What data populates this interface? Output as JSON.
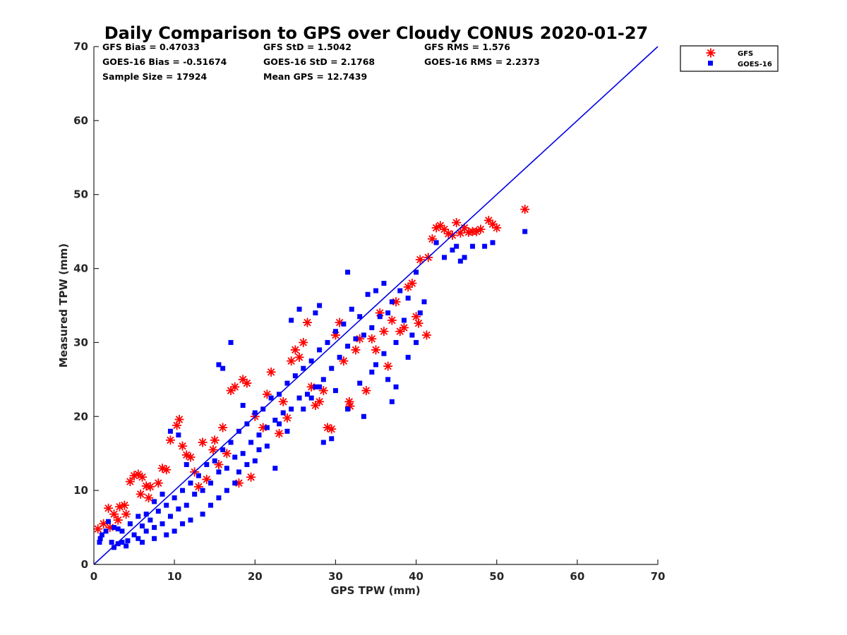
{
  "chart_data": {
    "type": "scatter",
    "title": "Daily Comparison to GPS over Cloudy CONUS 2020-01-27",
    "xlabel": "GPS TPW (mm)",
    "ylabel": "Measured TPW (mm)",
    "xlim": [
      0,
      70
    ],
    "ylim": [
      0,
      70
    ],
    "xticks": [
      "0",
      "10",
      "20",
      "30",
      "40",
      "50",
      "60",
      "70"
    ],
    "yticks": [
      "0",
      "10",
      "20",
      "30",
      "40",
      "50",
      "60",
      "70"
    ],
    "grid": false,
    "legend_position": "outside-top-right",
    "stats": [
      [
        "GFS Bias = 0.47033",
        "GFS StD = 1.5042",
        "GFS RMS = 1.576"
      ],
      [
        "GOES-16 Bias = -0.51674",
        "GOES-16 StD = 2.1768",
        "GOES-16 RMS = 2.2373"
      ],
      [
        "Sample Size = 17924",
        "Mean GPS = 12.7439",
        ""
      ]
    ],
    "reference_line": {
      "x": [
        0,
        70
      ],
      "y": [
        0,
        70
      ],
      "color": "#0000e6"
    },
    "series": [
      {
        "name": "GFS",
        "marker": "asterisk",
        "color": "#ff0000",
        "points": [
          [
            0.5,
            4.8
          ],
          [
            1.2,
            5.5
          ],
          [
            1.8,
            7.6
          ],
          [
            2.5,
            6.8
          ],
          [
            3.2,
            7.8
          ],
          [
            3.8,
            8.0
          ],
          [
            4.5,
            11.2
          ],
          [
            5.0,
            12.0
          ],
          [
            5.5,
            12.2
          ],
          [
            6.0,
            11.8
          ],
          [
            6.5,
            10.6
          ],
          [
            3.0,
            6.0
          ],
          [
            4.0,
            6.8
          ],
          [
            5.8,
            9.5
          ],
          [
            7.0,
            10.5
          ],
          [
            8.0,
            11.0
          ],
          [
            9.5,
            16.8
          ],
          [
            10.3,
            18.8
          ],
          [
            10.6,
            19.6
          ],
          [
            9.0,
            12.8
          ],
          [
            11.0,
            16.0
          ],
          [
            12.0,
            14.5
          ],
          [
            13.5,
            16.5
          ],
          [
            14.8,
            15.5
          ],
          [
            16.0,
            18.5
          ],
          [
            17.0,
            23.5
          ],
          [
            17.5,
            24.0
          ],
          [
            18.5,
            25.0
          ],
          [
            19.0,
            24.5
          ],
          [
            19.5,
            11.8
          ],
          [
            18.0,
            11.0
          ],
          [
            20.0,
            20.0
          ],
          [
            21.0,
            18.5
          ],
          [
            22.0,
            26.0
          ],
          [
            23.0,
            17.7
          ],
          [
            24.0,
            19.8
          ],
          [
            25.0,
            29.0
          ],
          [
            26.0,
            30.0
          ],
          [
            26.5,
            32.7
          ],
          [
            27.0,
            24.0
          ],
          [
            27.5,
            21.5
          ],
          [
            28.0,
            22.0
          ],
          [
            28.5,
            23.5
          ],
          [
            29.0,
            18.5
          ],
          [
            29.5,
            18.3
          ],
          [
            30.0,
            31.0
          ],
          [
            30.5,
            32.7
          ],
          [
            31.0,
            27.5
          ],
          [
            31.7,
            22.0
          ],
          [
            31.8,
            21.4
          ],
          [
            32.5,
            29.0
          ],
          [
            33.0,
            30.5
          ],
          [
            33.8,
            23.5
          ],
          [
            34.5,
            30.5
          ],
          [
            35.0,
            29.0
          ],
          [
            35.5,
            34.0
          ],
          [
            36.0,
            31.5
          ],
          [
            36.5,
            26.8
          ],
          [
            37.0,
            33.0
          ],
          [
            37.5,
            35.5
          ],
          [
            38.0,
            31.5
          ],
          [
            38.5,
            32.0
          ],
          [
            39.0,
            37.5
          ],
          [
            39.5,
            38.0
          ],
          [
            40.0,
            33.5
          ],
          [
            40.3,
            32.6
          ],
          [
            40.5,
            41.2
          ],
          [
            41.3,
            31.0
          ],
          [
            41.5,
            41.5
          ],
          [
            42.0,
            44.0
          ],
          [
            42.5,
            45.5
          ],
          [
            43.0,
            45.8
          ],
          [
            43.5,
            45.3
          ],
          [
            44.0,
            44.7
          ],
          [
            44.5,
            44.5
          ],
          [
            45.0,
            46.2
          ],
          [
            45.5,
            44.8
          ],
          [
            46.0,
            45.5
          ],
          [
            46.5,
            44.9
          ],
          [
            47.0,
            45.0
          ],
          [
            47.5,
            45.0
          ],
          [
            48.0,
            45.3
          ],
          [
            49.0,
            46.5
          ],
          [
            49.5,
            46.0
          ],
          [
            50.0,
            45.5
          ],
          [
            53.5,
            48.0
          ],
          [
            12.5,
            12.5
          ],
          [
            13.0,
            10.5
          ],
          [
            14.0,
            11.5
          ],
          [
            15.5,
            13.5
          ],
          [
            21.5,
            23.0
          ],
          [
            23.5,
            22.0
          ],
          [
            24.5,
            27.5
          ],
          [
            25.5,
            28.0
          ],
          [
            2.0,
            5.0
          ],
          [
            6.8,
            9.0
          ],
          [
            8.5,
            13.0
          ],
          [
            11.5,
            14.8
          ],
          [
            15.0,
            16.8
          ],
          [
            16.5,
            15.0
          ]
        ]
      },
      {
        "name": "GOES-16",
        "marker": "square",
        "color": "#0000ff",
        "points": [
          [
            0.8,
            3.5
          ],
          [
            1.5,
            4.5
          ],
          [
            2.2,
            3.0
          ],
          [
            3.0,
            2.8
          ],
          [
            3.5,
            4.5
          ],
          [
            4.2,
            3.2
          ],
          [
            5.0,
            4.0
          ],
          [
            5.5,
            3.5
          ],
          [
            6.0,
            5.2
          ],
          [
            6.5,
            4.5
          ],
          [
            7.0,
            6.0
          ],
          [
            7.5,
            5.0
          ],
          [
            8.0,
            7.2
          ],
          [
            8.5,
            5.5
          ],
          [
            9.0,
            8.0
          ],
          [
            9.5,
            6.5
          ],
          [
            10.0,
            9.0
          ],
          [
            10.5,
            7.5
          ],
          [
            11.0,
            10.0
          ],
          [
            11.5,
            8.0
          ],
          [
            12.0,
            11.0
          ],
          [
            12.5,
            9.5
          ],
          [
            13.0,
            12.0
          ],
          [
            13.5,
            10.0
          ],
          [
            14.0,
            13.5
          ],
          [
            14.5,
            11.0
          ],
          [
            15.0,
            14.0
          ],
          [
            15.5,
            12.5
          ],
          [
            16.0,
            15.5
          ],
          [
            16.5,
            13.0
          ],
          [
            17.0,
            16.5
          ],
          [
            17.5,
            14.5
          ],
          [
            18.0,
            18.0
          ],
          [
            18.5,
            15.0
          ],
          [
            19.0,
            19.0
          ],
          [
            19.5,
            16.5
          ],
          [
            20.0,
            20.5
          ],
          [
            20.5,
            17.5
          ],
          [
            21.0,
            21.0
          ],
          [
            21.5,
            18.5
          ],
          [
            22.0,
            22.5
          ],
          [
            22.5,
            19.5
          ],
          [
            23.0,
            23.0
          ],
          [
            23.5,
            20.5
          ],
          [
            24.0,
            24.5
          ],
          [
            24.5,
            21.0
          ],
          [
            25.0,
            25.5
          ],
          [
            25.5,
            22.5
          ],
          [
            26.0,
            26.5
          ],
          [
            26.5,
            23.0
          ],
          [
            27.0,
            27.5
          ],
          [
            27.5,
            24.0
          ],
          [
            28.0,
            29.0
          ],
          [
            28.5,
            25.0
          ],
          [
            29.0,
            30.0
          ],
          [
            29.5,
            26.5
          ],
          [
            30.0,
            31.5
          ],
          [
            30.5,
            28.0
          ],
          [
            31.0,
            32.5
          ],
          [
            31.5,
            29.5
          ],
          [
            32.0,
            34.5
          ],
          [
            32.5,
            30.5
          ],
          [
            33.0,
            33.5
          ],
          [
            33.5,
            31.0
          ],
          [
            34.0,
            36.5
          ],
          [
            34.5,
            32.0
          ],
          [
            35.0,
            37.0
          ],
          [
            35.5,
            33.5
          ],
          [
            36.0,
            38.0
          ],
          [
            36.5,
            34.0
          ],
          [
            37.0,
            35.5
          ],
          [
            37.5,
            30.0
          ],
          [
            38.0,
            37.0
          ],
          [
            38.5,
            33.0
          ],
          [
            39.0,
            36.0
          ],
          [
            39.5,
            31.0
          ],
          [
            40.0,
            39.5
          ],
          [
            40.5,
            34.0
          ],
          [
            41.0,
            35.5
          ],
          [
            31.5,
            39.5
          ],
          [
            28.0,
            35.0
          ],
          [
            27.5,
            34.0
          ],
          [
            25.5,
            34.5
          ],
          [
            24.5,
            33.0
          ],
          [
            17.0,
            30.0
          ],
          [
            16.0,
            26.5
          ],
          [
            15.5,
            27.0
          ],
          [
            9.5,
            18.0
          ],
          [
            10.5,
            17.5
          ],
          [
            11.5,
            13.5
          ],
          [
            18.5,
            21.5
          ],
          [
            20.0,
            14.0
          ],
          [
            22.5,
            13.0
          ],
          [
            28.5,
            16.5
          ],
          [
            29.5,
            17.0
          ],
          [
            31.5,
            21.0
          ],
          [
            30.0,
            23.5
          ],
          [
            33.5,
            20.0
          ],
          [
            36.5,
            25.0
          ],
          [
            37.0,
            22.0
          ],
          [
            42.5,
            43.5
          ],
          [
            43.5,
            41.5
          ],
          [
            44.5,
            42.5
          ],
          [
            45.5,
            41.0
          ],
          [
            46.0,
            41.5
          ],
          [
            47.0,
            43.0
          ],
          [
            48.5,
            43.0
          ],
          [
            49.5,
            43.5
          ],
          [
            53.5,
            45.0
          ],
          [
            45.0,
            43.0
          ],
          [
            1.0,
            4.0
          ],
          [
            2.5,
            5.0
          ],
          [
            3.5,
            3.0
          ],
          [
            4.5,
            5.5
          ],
          [
            5.5,
            6.5
          ],
          [
            6.5,
            6.8
          ],
          [
            7.5,
            8.5
          ],
          [
            8.5,
            9.5
          ],
          [
            12.0,
            6.0
          ],
          [
            13.5,
            6.8
          ],
          [
            14.5,
            8.0
          ],
          [
            15.5,
            9.0
          ],
          [
            16.5,
            10.0
          ],
          [
            17.5,
            11.0
          ],
          [
            18.0,
            12.5
          ],
          [
            19.0,
            13.5
          ],
          [
            20.5,
            15.5
          ],
          [
            21.5,
            16.0
          ],
          [
            23.0,
            19.0
          ],
          [
            24.0,
            18.0
          ],
          [
            26.0,
            21.0
          ],
          [
            27.0,
            22.5
          ],
          [
            28.0,
            24.0
          ],
          [
            33.0,
            24.5
          ],
          [
            34.5,
            26.0
          ],
          [
            35.0,
            27.0
          ],
          [
            36.0,
            28.5
          ],
          [
            37.5,
            24.0
          ],
          [
            39.0,
            28.0
          ],
          [
            40.0,
            30.0
          ],
          [
            10.0,
            4.5
          ],
          [
            11.0,
            5.5
          ],
          [
            9.0,
            4.0
          ],
          [
            7.5,
            3.5
          ],
          [
            6.0,
            3.0
          ],
          [
            4.0,
            2.5
          ],
          [
            2.5,
            2.3
          ],
          [
            0.7,
            3.0
          ],
          [
            1.8,
            5.8
          ],
          [
            3.0,
            4.8
          ]
        ]
      }
    ]
  }
}
